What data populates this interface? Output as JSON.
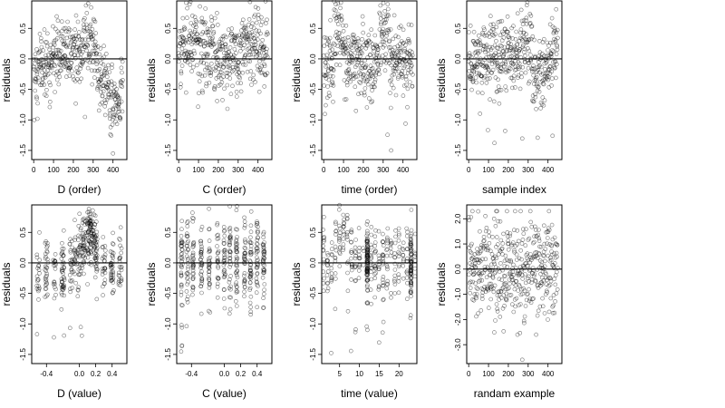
{
  "figure": {
    "background": "#ffffff",
    "point_color": "#000000",
    "point_style": "open-circle"
  },
  "chart_data": [
    {
      "type": "scatter",
      "xlabel": "D (order)",
      "ylabel": "residuals",
      "xlim": [
        -10,
        470
      ],
      "ylim": [
        -1.65,
        0.95
      ],
      "xticks": [
        0,
        100,
        200,
        300,
        400
      ],
      "yticks": [
        0.5,
        0.0,
        -0.5,
        -1.0,
        -1.5
      ],
      "reference_line_y": 0,
      "pattern": "index order, ~450 points; slight upward trend with band 0.2–0.8 near x=280–300; drops to about -0.3 near x=400"
    },
    {
      "type": "scatter",
      "xlabel": "C (order)",
      "ylabel": "residuals",
      "xlim": [
        -10,
        470
      ],
      "ylim": [
        -1.65,
        0.95
      ],
      "xticks": [
        0,
        100,
        200,
        300,
        400
      ],
      "yticks": [
        0.5,
        0.0,
        -0.5,
        -1.0,
        -1.5
      ],
      "reference_line_y": 0,
      "pattern": "index order, ~450 points; roughly flat around 0 with spread -0.6 to 0.8; few outliers near -1.2 at x≈10"
    },
    {
      "type": "scatter",
      "xlabel": "time (order)",
      "ylabel": "residuals",
      "xlim": [
        -10,
        470
      ],
      "ylim": [
        -1.65,
        0.95
      ],
      "xticks": [
        0,
        100,
        200,
        300,
        400
      ],
      "yticks": [
        0.5,
        0.0,
        -0.5,
        -1.0,
        -1.5
      ],
      "reference_line_y": 0,
      "pattern": "index order, ~450 points; cluster around 0.4–0.8 near x≈80 and x≈300; outliers down to -1.5 near x≈340"
    },
    {
      "type": "scatter",
      "xlabel": "sample index",
      "ylabel": "residuals",
      "xlim": [
        -10,
        470
      ],
      "ylim": [
        -1.65,
        0.95
      ],
      "xticks": [
        0,
        100,
        200,
        300,
        400
      ],
      "yticks": [
        0.5,
        0.0,
        -0.5,
        -1.0,
        -1.5
      ],
      "reference_line_y": 0,
      "pattern": "~450 points in sample order; similar to D (order) with rising band near x≈300 and x≈430"
    },
    {
      "type": "scatter",
      "xlabel": "D (value)",
      "ylabel": "residuals",
      "xlim": [
        -0.58,
        0.58
      ],
      "ylim": [
        -1.65,
        0.95
      ],
      "xticks": [
        -0.4,
        0.0,
        0.2,
        0.4
      ],
      "xtick_labels": [
        "-0.4",
        "0.0",
        "0.2",
        "0.4"
      ],
      "yticks": [
        0.5,
        0.0,
        -0.5,
        -1.0,
        -1.5
      ],
      "reference_line_y": 0,
      "pattern": "~450 points; dense vertical streak at D≈0.12 reaching 0.8; increasing mean toward D≈0.12 then falling"
    },
    {
      "type": "scatter",
      "xlabel": "C (value)",
      "ylabel": "residuals",
      "xlim": [
        -0.58,
        0.58
      ],
      "ylim": [
        -1.65,
        0.95
      ],
      "xticks": [
        -0.4,
        0.0,
        0.2,
        0.4
      ],
      "xtick_labels": [
        "-0.4",
        "0.0",
        "0.2",
        "0.4"
      ],
      "yticks": [
        0.5,
        0.0,
        -0.5,
        -1.0,
        -1.5
      ],
      "reference_line_y": 0,
      "pattern": "~450 points in vertical columns at C ≈ -0.5, -0.4, -0.25, -0.1, 0.0, 0.15, 0.25, 0.35, 0.5; spread -0.8 to 0.8"
    },
    {
      "type": "scatter",
      "xlabel": "time (value)",
      "ylabel": "residuals",
      "xlim": [
        0.5,
        24.5
      ],
      "ylim": [
        -1.65,
        0.95
      ],
      "xticks": [
        5,
        10,
        15,
        20
      ],
      "yticks": [
        0.5,
        0.0,
        -0.5,
        -1.0,
        -1.5
      ],
      "reference_line_y": 0,
      "pattern": "~450 points; dense vertical streaks at time≈12 and ≈23; cluster 0.3–0.8 near time 5"
    },
    {
      "type": "scatter",
      "xlabel": "randam example",
      "ylabel": "residuals",
      "xlim": [
        -10,
        470
      ],
      "ylim": [
        -3.75,
        2.55
      ],
      "xticks": [
        0,
        100,
        200,
        300,
        400
      ],
      "yticks": [
        2,
        1,
        0,
        -1,
        -2,
        -3
      ],
      "reference_line_y": 0,
      "pattern": "~450 points of random noise, uniform spread from about -2.5 to 2.3 with one outlier near -3.6"
    }
  ]
}
